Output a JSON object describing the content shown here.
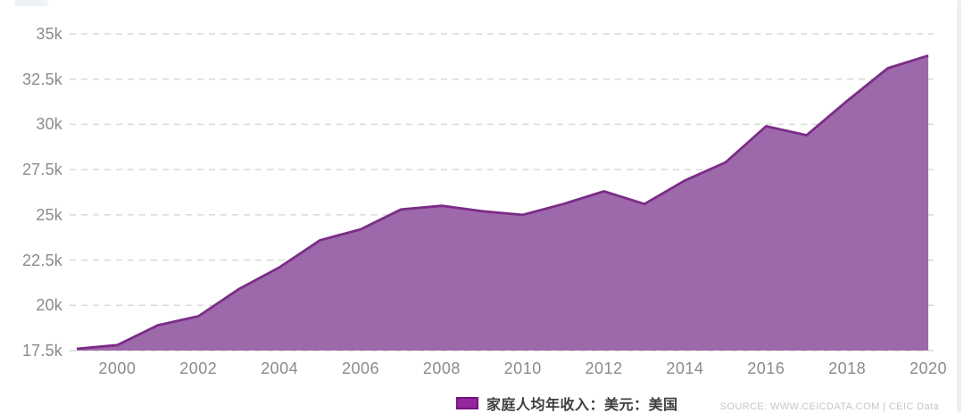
{
  "chart_data": {
    "type": "area",
    "title": "",
    "series": [
      {
        "name": "家庭人均年收入：美元：美国",
        "values": [
          17.6,
          17.8,
          18.9,
          19.4,
          20.9,
          22.1,
          23.6,
          24.2,
          25.3,
          25.5,
          25.2,
          25.0,
          25.6,
          26.3,
          25.6,
          26.9,
          27.9,
          29.9,
          29.4,
          31.3,
          33.1,
          33.8
        ]
      }
    ],
    "x": [
      1999,
      2000,
      2001,
      2002,
      2003,
      2004,
      2005,
      2006,
      2007,
      2008,
      2009,
      2010,
      2011,
      2012,
      2013,
      2014,
      2015,
      2016,
      2017,
      2018,
      2019,
      2020
    ],
    "value_unit": "thousand USD",
    "xlim": [
      1999,
      2020
    ],
    "ylim": [
      17.5,
      35
    ],
    "y_tick_values": [
      17.5,
      20,
      22.5,
      25,
      27.5,
      30,
      32.5,
      35
    ],
    "y_tick_labels": [
      "17.5k",
      "20k",
      "22.5k",
      "25k",
      "27.5k",
      "30k",
      "32.5k",
      "35k"
    ],
    "x_tick_values": [
      2000,
      2002,
      2004,
      2006,
      2008,
      2010,
      2012,
      2014,
      2016,
      2018,
      2020
    ],
    "x_tick_labels": [
      "2000",
      "2002",
      "2004",
      "2006",
      "2008",
      "2010",
      "2012",
      "2014",
      "2016",
      "2018",
      "2020"
    ],
    "grid": "horizontal-dashed",
    "legend_position": "bottom-center"
  },
  "legend": {
    "label": "家庭人均年收入：美元：美国"
  },
  "source": {
    "text": "SOURCE: WWW.CEICDATA.COM | CEIC Data"
  },
  "colors": {
    "area_fill": "#9a63a8",
    "line": "#7b2d87",
    "grid": "#d9d9d9",
    "axis_text": "#8b8b8b",
    "legend_swatch_fill": "#93279b",
    "legend_swatch_border": "#76127e",
    "legend_text": "#3e3e3e",
    "source_text": "#c6c6c6"
  }
}
